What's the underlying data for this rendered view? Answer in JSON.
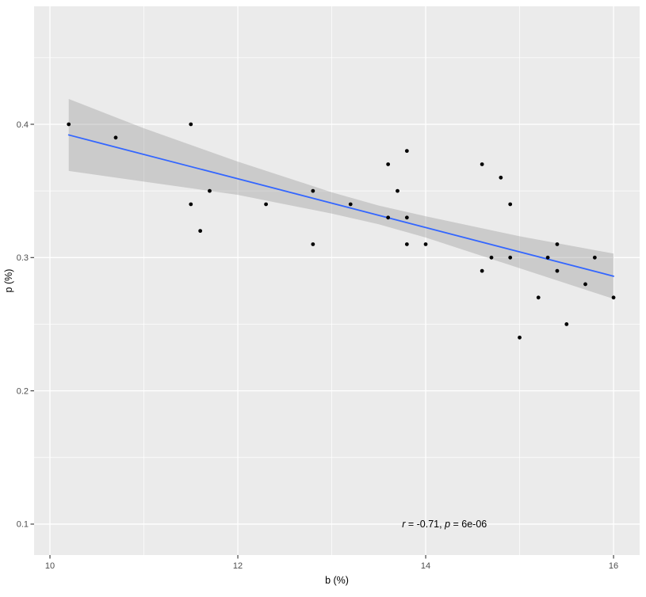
{
  "chart_data": {
    "type": "scatter",
    "title": "",
    "xlabel": "b (%)",
    "ylabel": "p (%)",
    "xlim": [
      9.831,
      16.278
    ],
    "ylim": [
      0.0768,
      0.4885
    ],
    "x_major_ticks": [
      10,
      12,
      14,
      16
    ],
    "x_minor_ticks": [
      11,
      13,
      15
    ],
    "y_major_ticks": [
      0.1,
      0.2,
      0.3,
      0.4
    ],
    "y_minor_ticks": [
      0.15,
      0.25,
      0.35,
      0.45
    ],
    "x_tick_labels": [
      "10",
      "12",
      "14",
      "16"
    ],
    "y_tick_labels": [
      "0.1",
      "0.2",
      "0.3",
      "0.4"
    ],
    "grid": true,
    "legend": "none",
    "points": [
      [
        10.2,
        0.4
      ],
      [
        10.7,
        0.39
      ],
      [
        11.5,
        0.4
      ],
      [
        11.5,
        0.34
      ],
      [
        11.7,
        0.35
      ],
      [
        11.6,
        0.32
      ],
      [
        12.3,
        0.34
      ],
      [
        12.8,
        0.35
      ],
      [
        12.8,
        0.31
      ],
      [
        13.2,
        0.34
      ],
      [
        13.6,
        0.37
      ],
      [
        13.7,
        0.35
      ],
      [
        13.8,
        0.38
      ],
      [
        13.6,
        0.33
      ],
      [
        13.8,
        0.33
      ],
      [
        13.8,
        0.31
      ],
      [
        14.0,
        0.31
      ],
      [
        14.6,
        0.37
      ],
      [
        14.8,
        0.36
      ],
      [
        14.6,
        0.29
      ],
      [
        14.7,
        0.3
      ],
      [
        14.9,
        0.3
      ],
      [
        14.9,
        0.34
      ],
      [
        15.0,
        0.24
      ],
      [
        15.2,
        0.27
      ],
      [
        15.3,
        0.3
      ],
      [
        15.4,
        0.31
      ],
      [
        15.4,
        0.29
      ],
      [
        15.5,
        0.25
      ],
      [
        15.7,
        0.28
      ],
      [
        15.8,
        0.3
      ],
      [
        16.0,
        0.27
      ]
    ],
    "regression": {
      "x1": 10.2,
      "y1": 0.392,
      "x2": 16.0,
      "y2": 0.286
    },
    "confidence_band": [
      {
        "x": 10.2,
        "lo": 0.365,
        "hi": 0.419
      },
      {
        "x": 11.0,
        "lo": 0.357,
        "hi": 0.397
      },
      {
        "x": 12.0,
        "lo": 0.347,
        "hi": 0.372
      },
      {
        "x": 13.0,
        "lo": 0.333,
        "hi": 0.349
      },
      {
        "x": 13.5,
        "lo": 0.325,
        "hi": 0.339
      },
      {
        "x": 14.0,
        "lo": 0.315,
        "hi": 0.331
      },
      {
        "x": 15.0,
        "lo": 0.292,
        "hi": 0.316
      },
      {
        "x": 16.0,
        "lo": 0.269,
        "hi": 0.303
      }
    ],
    "annotation": {
      "r_label": "r",
      "r_rest": " = -0.71, ",
      "p_label": "p",
      "p_rest": " = 6e-06",
      "full_text": "r = -0.71, p = 6e-06",
      "x": 14.2,
      "y": 0.1
    },
    "colors": {
      "background": "#FFFFFF",
      "panel": "#EBEBEB",
      "grid_major": "#FFFFFF",
      "grid_minor": "#FFFFFF",
      "band": "#999999",
      "band_opacity": 0.38,
      "line": "#3366FF",
      "point": "#000000",
      "tick": "#333333",
      "tick_label": "#4D4D4D",
      "axis_title": "#000000",
      "annotation_text": "#000000"
    }
  }
}
